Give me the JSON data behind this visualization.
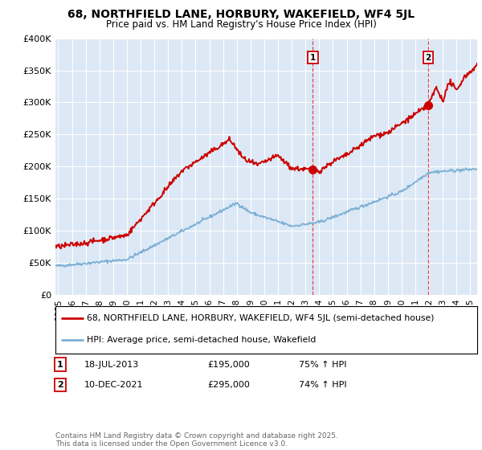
{
  "title": "68, NORTHFIELD LANE, HORBURY, WAKEFIELD, WF4 5JL",
  "subtitle": "Price paid vs. HM Land Registry's House Price Index (HPI)",
  "ylabel_ticks": [
    "£0",
    "£50K",
    "£100K",
    "£150K",
    "£200K",
    "£250K",
    "£300K",
    "£350K",
    "£400K"
  ],
  "ytick_values": [
    0,
    50000,
    100000,
    150000,
    200000,
    250000,
    300000,
    350000,
    400000
  ],
  "ylim": [
    0,
    400000
  ],
  "xlim_start": 1994.8,
  "xlim_end": 2025.5,
  "plot_bg_color": "#dce8f5",
  "red_line_color": "#cc0000",
  "blue_line_color": "#7aafd4",
  "marker1_date": 2013.54,
  "marker1_value": 195000,
  "marker2_date": 2021.94,
  "marker2_value": 295000,
  "vline1_x": 2013.54,
  "vline2_x": 2021.94,
  "legend_red": "68, NORTHFIELD LANE, HORBURY, WAKEFIELD, WF4 5JL (semi-detached house)",
  "legend_blue": "HPI: Average price, semi-detached house, Wakefield",
  "table_row1": [
    "1",
    "18-JUL-2013",
    "£195,000",
    "75% ↑ HPI"
  ],
  "table_row2": [
    "2",
    "10-DEC-2021",
    "£295,000",
    "74% ↑ HPI"
  ],
  "footer": "Contains HM Land Registry data © Crown copyright and database right 2025.\nThis data is licensed under the Open Government Licence v3.0."
}
